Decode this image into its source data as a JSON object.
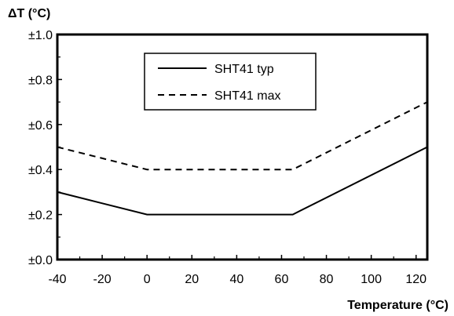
{
  "chart_data": {
    "type": "line",
    "title": "",
    "ylabel": "ΔT (°C)",
    "xlabel": "Temperature (°C)",
    "xlim": [
      -40,
      125
    ],
    "ylim": [
      0,
      1.0
    ],
    "x_ticks": [
      -40,
      -20,
      0,
      20,
      40,
      60,
      80,
      100,
      120
    ],
    "x_tick_labels": [
      "-40",
      "-20",
      "0",
      "20",
      "40",
      "60",
      "80",
      "100",
      "120"
    ],
    "y_ticks": [
      0,
      0.2,
      0.4,
      0.6,
      0.8,
      1.0
    ],
    "y_tick_labels": [
      "±0.0",
      "±0.2",
      "±0.4",
      "±0.6",
      "±0.8",
      "±1.0"
    ],
    "grid": false,
    "legend_position": "top-center",
    "series": [
      {
        "name": "SHT41 typ",
        "style": "solid",
        "color": "#000000",
        "x": [
          -40,
          0,
          65,
          125
        ],
        "y": [
          0.3,
          0.2,
          0.2,
          0.5
        ]
      },
      {
        "name": "SHT41 max",
        "style": "dashed",
        "color": "#000000",
        "x": [
          -40,
          0,
          65,
          125
        ],
        "y": [
          0.5,
          0.4,
          0.4,
          0.7
        ]
      }
    ]
  }
}
